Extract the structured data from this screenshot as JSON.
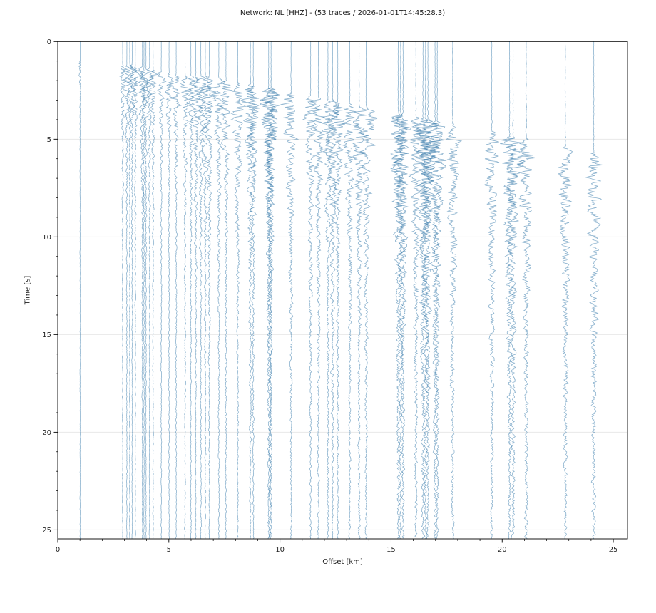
{
  "chart_data": {
    "type": "line",
    "subtype": "seismic-record-section",
    "title": "Network: NL [HHZ] - (53 traces / 2026-01-01T14:45:28.3)",
    "network": "NL",
    "channel": "HHZ",
    "trace_count": 53,
    "event_time": "2026-01-01T14:45:28.3",
    "xlabel": "Offset [km]",
    "ylabel": "Time [s]",
    "xlim": [
      0,
      25.64
    ],
    "ylim_top_s": 0,
    "ylim_bottom_s": 25.46,
    "x_ticks": [
      0,
      5,
      10,
      15,
      20,
      25
    ],
    "y_ticks": [
      0,
      5,
      10,
      15,
      20,
      25
    ],
    "x_minor_step_km": 1,
    "y_minor_step_s": 1,
    "grid": "horizontal-only",
    "legend": "none",
    "colors": {
      "trace": "#3d7eae",
      "grid": "#e8e8e8",
      "spine": "#000000",
      "text": "#262626",
      "background": "#ffffff"
    },
    "trace_fields": [
      "offset_km",
      "p_arrival_s",
      "amp_km",
      "decay_s"
    ],
    "traces": [
      [
        1.01,
        1.0,
        0.13,
        0.35
      ],
      [
        2.92,
        1.2,
        0.2,
        1.3
      ],
      [
        3.11,
        1.2,
        0.22,
        1.5
      ],
      [
        3.24,
        1.2,
        0.19,
        1.2
      ],
      [
        3.35,
        1.2,
        0.23,
        1.6
      ],
      [
        3.49,
        1.3,
        0.21,
        1.4
      ],
      [
        3.81,
        1.3,
        0.24,
        1.7
      ],
      [
        3.88,
        1.4,
        0.2,
        1.3
      ],
      [
        3.97,
        1.4,
        0.22,
        1.5
      ],
      [
        4.13,
        1.4,
        0.21,
        1.6
      ],
      [
        4.29,
        1.5,
        0.23,
        1.5
      ],
      [
        4.66,
        1.5,
        0.2,
        1.4
      ],
      [
        5.01,
        1.6,
        0.22,
        1.6
      ],
      [
        5.33,
        1.7,
        0.24,
        1.8
      ],
      [
        5.73,
        1.8,
        0.25,
        2.0
      ],
      [
        5.99,
        1.7,
        0.26,
        2.0
      ],
      [
        6.21,
        1.8,
        0.28,
        2.2
      ],
      [
        6.44,
        1.8,
        0.27,
        2.1
      ],
      [
        6.64,
        1.8,
        0.3,
        2.3
      ],
      [
        6.82,
        1.8,
        0.31,
        2.4
      ],
      [
        7.25,
        1.9,
        0.3,
        2.4
      ],
      [
        7.57,
        2.0,
        0.32,
        2.5
      ],
      [
        8.1,
        2.1,
        0.33,
        2.6
      ],
      [
        8.67,
        2.2,
        0.38,
        2.8
      ],
      [
        8.8,
        2.3,
        0.36,
        2.8
      ],
      [
        9.49,
        2.4,
        0.4,
        3.0
      ],
      [
        9.55,
        2.4,
        0.42,
        3.2
      ],
      [
        9.6,
        2.4,
        0.4,
        3.0
      ],
      [
        10.5,
        2.6,
        0.38,
        3.0
      ],
      [
        11.38,
        2.8,
        0.34,
        2.8
      ],
      [
        11.73,
        2.9,
        0.35,
        2.9
      ],
      [
        12.16,
        3.0,
        0.33,
        2.8
      ],
      [
        12.37,
        3.0,
        0.36,
        3.0
      ],
      [
        12.6,
        3.1,
        0.34,
        2.9
      ],
      [
        13.14,
        3.2,
        0.37,
        3.0
      ],
      [
        13.56,
        3.3,
        0.38,
        3.1
      ],
      [
        13.88,
        3.4,
        0.36,
        3.0
      ],
      [
        15.32,
        3.7,
        0.4,
        3.8
      ],
      [
        15.43,
        3.7,
        0.42,
        4.0
      ],
      [
        15.54,
        3.7,
        0.4,
        3.9
      ],
      [
        16.12,
        3.9,
        0.38,
        3.8
      ],
      [
        16.44,
        3.9,
        0.41,
        4.2
      ],
      [
        16.55,
        4.0,
        0.42,
        4.3
      ],
      [
        16.66,
        4.0,
        0.4,
        4.1
      ],
      [
        16.98,
        4.1,
        0.39,
        4.0
      ],
      [
        17.08,
        4.1,
        0.38,
        4.0
      ],
      [
        17.77,
        4.2,
        0.36,
        3.8
      ],
      [
        19.53,
        4.6,
        0.32,
        4.2
      ],
      [
        20.33,
        4.8,
        0.34,
        4.5
      ],
      [
        20.49,
        4.9,
        0.35,
        4.6
      ],
      [
        21.08,
        5.0,
        0.32,
        4.3
      ],
      [
        22.84,
        5.4,
        0.3,
        4.5
      ],
      [
        24.12,
        5.7,
        0.34,
        4.8
      ]
    ]
  }
}
